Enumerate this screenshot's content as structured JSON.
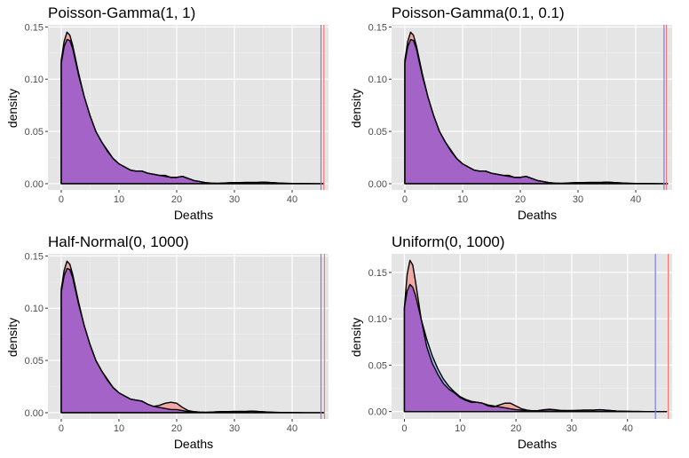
{
  "colors": {
    "panel_background": "#e5e5e5",
    "grid_major": "#ffffff",
    "grid_minor": "#f0f0f0",
    "fill_red": "#f8766d",
    "fill_blue": "#619cff",
    "fill_overlap": "#a463c6",
    "vline_red": "#f8766d",
    "vline_blue": "#7b7bf0",
    "outline": "#000000"
  },
  "chart_data": [
    {
      "type": "area",
      "title": "Poisson-Gamma(1, 1)",
      "xlabel": "Deaths",
      "ylabel": "density",
      "xlim": [
        -2.3,
        46.3
      ],
      "ylim": [
        -0.006,
        0.152
      ],
      "xticks": [
        0,
        10,
        20,
        30,
        40
      ],
      "yticks": [
        0.0,
        0.05,
        0.1,
        0.15
      ],
      "ytick_labels": [
        "0.00",
        "0.05",
        "0.10",
        "0.15"
      ],
      "grid": true,
      "vlines": {
        "red": 45.5,
        "blue": 45.0
      },
      "series": [
        {
          "color": "red",
          "x": [
            0,
            0.5,
            1,
            1.5,
            2,
            3,
            4,
            5,
            6,
            7,
            8,
            9,
            10,
            11,
            12,
            13,
            14,
            15,
            16,
            17,
            18,
            19,
            20,
            21,
            22,
            23,
            24,
            25,
            26,
            27,
            28,
            29,
            30,
            31,
            32,
            33,
            34,
            35,
            36,
            37,
            38,
            39,
            40,
            41,
            42,
            43,
            44,
            45,
            45.5
          ],
          "y": [
            0.118,
            0.136,
            0.145,
            0.142,
            0.132,
            0.106,
            0.083,
            0.065,
            0.05,
            0.04,
            0.032,
            0.024,
            0.019,
            0.016,
            0.013,
            0.012,
            0.012,
            0.01,
            0.009,
            0.008,
            0.008,
            0.006,
            0.006,
            0.007,
            0.005,
            0.003,
            0.002,
            0.001,
            0.0005,
            0.0003,
            0.0005,
            0.0008,
            0.001,
            0.001,
            0.0012,
            0.0012,
            0.0012,
            0.0015,
            0.0012,
            0.0008,
            0.0005,
            0.0003,
            0.0002,
            0.0002,
            0.0001,
            0.0001,
            0.0,
            0.0,
            0.0
          ]
        },
        {
          "color": "blue",
          "x": [
            0,
            0.5,
            1,
            1.5,
            2,
            3,
            4,
            5,
            6,
            7,
            8,
            9,
            10,
            11,
            12,
            13,
            14,
            15,
            16,
            17,
            18,
            19,
            20,
            21,
            22,
            23,
            24,
            25,
            26,
            27,
            28,
            29,
            30,
            31,
            32,
            33,
            34,
            35,
            36,
            37,
            38,
            39,
            40,
            41,
            42,
            43,
            44,
            45,
            45.5
          ],
          "y": [
            0.115,
            0.131,
            0.138,
            0.137,
            0.129,
            0.104,
            0.083,
            0.065,
            0.05,
            0.04,
            0.031,
            0.024,
            0.019,
            0.016,
            0.013,
            0.012,
            0.012,
            0.01,
            0.009,
            0.008,
            0.007,
            0.006,
            0.006,
            0.007,
            0.005,
            0.003,
            0.002,
            0.001,
            0.0005,
            0.0003,
            0.0005,
            0.0008,
            0.001,
            0.001,
            0.0012,
            0.0012,
            0.0012,
            0.0015,
            0.0012,
            0.0008,
            0.0005,
            0.0003,
            0.0002,
            0.0002,
            0.0001,
            0.0001,
            0.0,
            0.0,
            0.0
          ]
        }
      ]
    },
    {
      "type": "area",
      "title": "Poisson-Gamma(0.1, 0.1)",
      "xlabel": "Deaths",
      "ylabel": "density",
      "xlim": [
        -2.3,
        46.3
      ],
      "ylim": [
        -0.006,
        0.152
      ],
      "xticks": [
        0,
        10,
        20,
        30,
        40
      ],
      "yticks": [
        0.0,
        0.05,
        0.1,
        0.15
      ],
      "ytick_labels": [
        "0.00",
        "0.05",
        "0.10",
        "0.15"
      ],
      "grid": true,
      "vlines": {
        "red": 45.3,
        "blue": 44.9
      },
      "series": [
        {
          "color": "red",
          "x": [
            0,
            0.5,
            1,
            1.5,
            2,
            3,
            4,
            5,
            6,
            7,
            8,
            9,
            10,
            11,
            12,
            13,
            14,
            15,
            16,
            17,
            18,
            19,
            20,
            21,
            22,
            23,
            24,
            25,
            26,
            27,
            28,
            29,
            30,
            31,
            32,
            33,
            34,
            35,
            36,
            37,
            38,
            39,
            40,
            41,
            42,
            43,
            44,
            45,
            45.5
          ],
          "y": [
            0.118,
            0.136,
            0.145,
            0.142,
            0.132,
            0.106,
            0.083,
            0.065,
            0.05,
            0.04,
            0.032,
            0.024,
            0.019,
            0.016,
            0.013,
            0.012,
            0.012,
            0.01,
            0.009,
            0.008,
            0.008,
            0.006,
            0.006,
            0.007,
            0.005,
            0.003,
            0.002,
            0.001,
            0.0005,
            0.0003,
            0.0005,
            0.0008,
            0.001,
            0.001,
            0.0012,
            0.0012,
            0.0012,
            0.0015,
            0.0012,
            0.0008,
            0.0005,
            0.0003,
            0.0002,
            0.0002,
            0.0001,
            0.0001,
            0.0,
            0.0,
            0.0
          ]
        },
        {
          "color": "blue",
          "x": [
            0,
            0.5,
            1,
            1.5,
            2,
            3,
            4,
            5,
            6,
            7,
            8,
            9,
            10,
            11,
            12,
            13,
            14,
            15,
            16,
            17,
            18,
            19,
            20,
            21,
            22,
            23,
            24,
            25,
            26,
            27,
            28,
            29,
            30,
            31,
            32,
            33,
            34,
            35,
            36,
            37,
            38,
            39,
            40,
            41,
            42,
            43,
            44,
            45,
            45.5
          ],
          "y": [
            0.115,
            0.131,
            0.138,
            0.137,
            0.129,
            0.104,
            0.083,
            0.065,
            0.05,
            0.04,
            0.031,
            0.024,
            0.019,
            0.016,
            0.013,
            0.012,
            0.012,
            0.01,
            0.009,
            0.008,
            0.007,
            0.006,
            0.006,
            0.007,
            0.005,
            0.003,
            0.002,
            0.001,
            0.0005,
            0.0003,
            0.0005,
            0.0008,
            0.001,
            0.001,
            0.0012,
            0.0012,
            0.0012,
            0.0015,
            0.0012,
            0.0008,
            0.0005,
            0.0003,
            0.0002,
            0.0002,
            0.0001,
            0.0001,
            0.0,
            0.0,
            0.0
          ]
        }
      ]
    },
    {
      "type": "area",
      "title": "Half-Normal(0, 1000)",
      "xlabel": "Deaths",
      "ylabel": "density",
      "xlim": [
        -2.3,
        46.3
      ],
      "ylim": [
        -0.006,
        0.152
      ],
      "xticks": [
        0,
        10,
        20,
        30,
        40
      ],
      "yticks": [
        0.0,
        0.05,
        0.1,
        0.15
      ],
      "ytick_labels": [
        "0.00",
        "0.05",
        "0.10",
        "0.15"
      ],
      "grid": true,
      "vlines": {
        "red": 45.6,
        "blue": 45.0
      },
      "series": [
        {
          "color": "red",
          "x": [
            0,
            0.5,
            1,
            1.5,
            2,
            3,
            4,
            5,
            6,
            7,
            8,
            9,
            10,
            11,
            12,
            13,
            14,
            15,
            16,
            17,
            18,
            19,
            20,
            21,
            22,
            23,
            24,
            25,
            26,
            27,
            28,
            29,
            30,
            31,
            32,
            33,
            34,
            35,
            36,
            37,
            38,
            39,
            40,
            41,
            42,
            43,
            44,
            45,
            45.5
          ],
          "y": [
            0.118,
            0.136,
            0.145,
            0.142,
            0.132,
            0.106,
            0.083,
            0.065,
            0.05,
            0.04,
            0.032,
            0.024,
            0.019,
            0.016,
            0.013,
            0.012,
            0.011,
            0.008,
            0.006,
            0.007,
            0.009,
            0.01,
            0.009,
            0.005,
            0.002,
            0.001,
            0.0005,
            0.0003,
            0.0005,
            0.0008,
            0.001,
            0.001,
            0.0012,
            0.0012,
            0.0012,
            0.0015,
            0.0012,
            0.0008,
            0.0005,
            0.0003,
            0.0002,
            0.0002,
            0.0001,
            0.0001,
            0.0,
            0.0,
            0.0,
            0.0,
            0.0
          ]
        },
        {
          "color": "blue",
          "x": [
            0,
            0.5,
            1,
            1.5,
            2,
            3,
            4,
            5,
            6,
            7,
            8,
            9,
            10,
            11,
            12,
            13,
            14,
            15,
            16,
            17,
            18,
            19,
            20,
            21,
            22,
            23,
            24,
            25,
            26,
            27,
            28,
            29,
            30,
            31,
            32,
            33,
            34,
            35,
            36,
            37,
            38,
            39,
            40,
            41,
            42,
            43,
            44,
            45,
            45.5
          ],
          "y": [
            0.115,
            0.131,
            0.138,
            0.137,
            0.129,
            0.104,
            0.083,
            0.065,
            0.05,
            0.04,
            0.031,
            0.024,
            0.019,
            0.016,
            0.013,
            0.012,
            0.011,
            0.008,
            0.006,
            0.005,
            0.004,
            0.003,
            0.003,
            0.002,
            0.001,
            0.001,
            0.0005,
            0.0003,
            0.0005,
            0.0008,
            0.001,
            0.001,
            0.0012,
            0.0012,
            0.0012,
            0.0015,
            0.0012,
            0.0008,
            0.0005,
            0.0003,
            0.0002,
            0.0002,
            0.0001,
            0.0001,
            0.0,
            0.0,
            0.0,
            0.0,
            0.0
          ]
        }
      ]
    },
    {
      "type": "area",
      "title": "Uniform(0, 1000)",
      "xlabel": "Deaths",
      "ylabel": "density",
      "xlim": [
        -2.3,
        48.0
      ],
      "ylim": [
        -0.008,
        0.17
      ],
      "xticks": [
        0,
        10,
        20,
        30,
        40
      ],
      "yticks": [
        0.0,
        0.05,
        0.1,
        0.15
      ],
      "ytick_labels": [
        "0.00",
        "0.05",
        "0.10",
        "0.15"
      ],
      "grid": true,
      "vlines": {
        "red": 47.3,
        "blue": 45.0
      },
      "series": [
        {
          "color": "red",
          "x": [
            0,
            0.5,
            1,
            1.5,
            2,
            3,
            4,
            5,
            6,
            7,
            8,
            9,
            10,
            11,
            12,
            13,
            14,
            15,
            16,
            17,
            18,
            19,
            20,
            21,
            22,
            23,
            24,
            25,
            26,
            27,
            28,
            29,
            30,
            31,
            32,
            33,
            34,
            35,
            36,
            37,
            38,
            39,
            40,
            41,
            42,
            43,
            44,
            45,
            46,
            47
          ],
          "y": [
            0.112,
            0.148,
            0.163,
            0.158,
            0.14,
            0.1,
            0.07,
            0.052,
            0.04,
            0.03,
            0.024,
            0.02,
            0.015,
            0.012,
            0.01,
            0.01,
            0.009,
            0.006,
            0.005,
            0.007,
            0.009,
            0.009,
            0.006,
            0.003,
            0.0015,
            0.0008,
            0.001,
            0.002,
            0.0025,
            0.002,
            0.0012,
            0.001,
            0.001,
            0.0012,
            0.0015,
            0.0015,
            0.0015,
            0.002,
            0.0015,
            0.001,
            0.0005,
            0.0003,
            0.0002,
            0.0001,
            0.0001,
            0.0,
            0.0,
            0.0,
            0.0,
            0.0
          ]
        },
        {
          "color": "blue",
          "x": [
            0,
            0.5,
            1,
            1.5,
            2,
            3,
            4,
            5,
            6,
            7,
            8,
            9,
            10,
            11,
            12,
            13,
            14,
            15,
            16,
            17,
            18,
            19,
            20,
            21,
            22,
            23,
            24,
            25,
            26,
            27,
            28,
            29,
            30,
            31,
            32,
            33,
            34,
            35,
            36,
            37,
            38,
            39,
            40,
            41,
            42,
            43,
            44,
            45,
            46,
            47
          ],
          "y": [
            0.112,
            0.13,
            0.137,
            0.134,
            0.125,
            0.1,
            0.078,
            0.06,
            0.046,
            0.035,
            0.027,
            0.021,
            0.016,
            0.013,
            0.011,
            0.01,
            0.009,
            0.007,
            0.006,
            0.005,
            0.004,
            0.003,
            0.002,
            0.0015,
            0.001,
            0.0008,
            0.001,
            0.0015,
            0.002,
            0.0015,
            0.0012,
            0.001,
            0.001,
            0.0012,
            0.0015,
            0.0015,
            0.0015,
            0.002,
            0.0015,
            0.001,
            0.0005,
            0.0003,
            0.0002,
            0.0001,
            0.0001,
            0.0,
            0.0,
            0.0,
            0.0,
            0.0
          ]
        }
      ]
    }
  ]
}
